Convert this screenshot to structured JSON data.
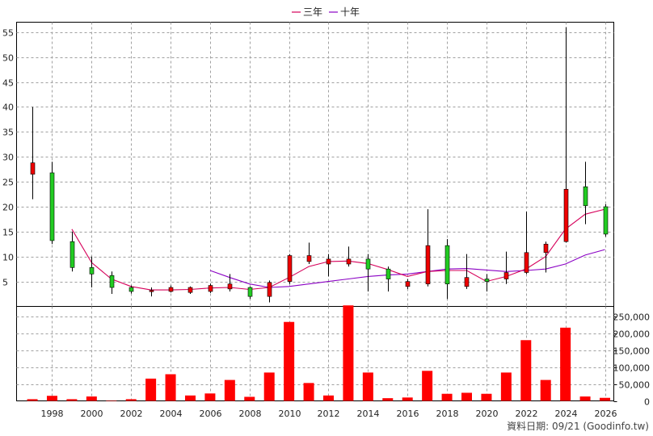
{
  "chart_data": {
    "type": "candlestick-with-volume",
    "legend": {
      "placement": "top-center",
      "items": [
        {
          "label": "三年",
          "color": "#d6005a"
        },
        {
          "label": "十年",
          "color": "#8a00c4"
        }
      ]
    },
    "price_axis": {
      "ticks": [
        "5",
        "10",
        "15",
        "20",
        "25",
        "30",
        "35",
        "40",
        "45",
        "50",
        "55"
      ],
      "range": [
        0,
        57
      ]
    },
    "volume_axis": {
      "ticks": [
        "0",
        "50,000",
        "100,000",
        "150,000",
        "200,000",
        "250,000"
      ],
      "range": [
        0,
        280000
      ]
    },
    "x_axis": {
      "tick_labels": [
        "1998",
        "2000",
        "2002",
        "2004",
        "2006",
        "2008",
        "2010",
        "2012",
        "2014",
        "2016",
        "2018",
        "2020",
        "2022",
        "2024",
        "2026"
      ]
    },
    "grid": true,
    "colors": {
      "up": "#ee0000",
      "down": "#22cc22",
      "volume": "#ff0000",
      "grid": "#a0a0a0",
      "ma3": "#d6005a",
      "ma10": "#8a00c4"
    },
    "candles": [
      {
        "year": 1997,
        "open": 26.5,
        "high": 40.0,
        "low": 21.5,
        "close": 28.8
      },
      {
        "year": 1998,
        "open": 26.8,
        "high": 29.0,
        "low": 12.5,
        "close": 13.2
      },
      {
        "year": 1999,
        "open": 13.0,
        "high": 15.0,
        "low": 7.0,
        "close": 7.8
      },
      {
        "year": 2000,
        "open": 7.8,
        "high": 10.0,
        "low": 3.8,
        "close": 6.5
      },
      {
        "year": 2001,
        "open": 6.2,
        "high": 7.0,
        "low": 2.5,
        "close": 3.8
      },
      {
        "year": 2002,
        "open": 3.8,
        "high": 4.2,
        "low": 2.6,
        "close": 3.0
      },
      {
        "year": 2003,
        "open": 3.0,
        "high": 3.8,
        "low": 2.0,
        "close": 3.2
      },
      {
        "year": 2004,
        "open": 3.0,
        "high": 4.2,
        "low": 2.8,
        "close": 3.8
      },
      {
        "year": 2005,
        "open": 2.8,
        "high": 4.0,
        "low": 2.5,
        "close": 3.8
      },
      {
        "year": 2006,
        "open": 3.0,
        "high": 4.6,
        "low": 2.7,
        "close": 4.2
      },
      {
        "year": 2007,
        "open": 3.5,
        "high": 6.5,
        "low": 3.0,
        "close": 4.5
      },
      {
        "year": 2008,
        "open": 3.8,
        "high": 4.0,
        "low": 1.5,
        "close": 2.0
      },
      {
        "year": 2009,
        "open": 2.0,
        "high": 5.2,
        "low": 0.8,
        "close": 4.8
      },
      {
        "year": 2010,
        "open": 5.0,
        "high": 10.5,
        "low": 4.5,
        "close": 10.2
      },
      {
        "year": 2011,
        "open": 9.0,
        "high": 12.8,
        "low": 8.5,
        "close": 10.2
      },
      {
        "year": 2012,
        "open": 8.5,
        "high": 10.5,
        "low": 6.0,
        "close": 9.5
      },
      {
        "year": 2013,
        "open": 8.5,
        "high": 12.0,
        "low": 8.0,
        "close": 9.5
      },
      {
        "year": 2014,
        "open": 9.5,
        "high": 10.5,
        "low": 3.0,
        "close": 7.5
      },
      {
        "year": 2015,
        "open": 7.5,
        "high": 8.0,
        "low": 3.0,
        "close": 5.5
      },
      {
        "year": 2016,
        "open": 4.0,
        "high": 5.5,
        "low": 3.5,
        "close": 5.0
      },
      {
        "year": 2017,
        "open": 4.5,
        "high": 19.5,
        "low": 4.0,
        "close": 12.2
      },
      {
        "year": 2018,
        "open": 12.2,
        "high": 13.5,
        "low": 1.5,
        "close": 4.5
      },
      {
        "year": 2019,
        "open": 4.0,
        "high": 10.5,
        "low": 3.5,
        "close": 5.8
      },
      {
        "year": 2020,
        "open": 5.5,
        "high": 6.5,
        "low": 3.0,
        "close": 5.0
      },
      {
        "year": 2021,
        "open": 5.5,
        "high": 11.0,
        "low": 4.5,
        "close": 6.8
      },
      {
        "year": 2022,
        "open": 6.8,
        "high": 19.0,
        "low": 6.5,
        "close": 10.8
      },
      {
        "year": 2023,
        "open": 10.8,
        "high": 13.0,
        "low": 6.8,
        "close": 12.5
      },
      {
        "year": 2024,
        "open": 13.0,
        "high": 56.0,
        "low": 12.8,
        "close": 23.5
      },
      {
        "year": 2025,
        "open": 24.0,
        "high": 29.0,
        "low": 16.5,
        "close": 20.2
      },
      {
        "year": 2026,
        "open": 20.0,
        "high": 20.5,
        "low": 14.0,
        "close": 14.5
      }
    ],
    "ma3_line": [
      {
        "year": 1999,
        "value": 15.5
      },
      {
        "year": 2000,
        "value": 8.8
      },
      {
        "year": 2001,
        "value": 5.5
      },
      {
        "year": 2002,
        "value": 4.0
      },
      {
        "year": 2003,
        "value": 3.3
      },
      {
        "year": 2004,
        "value": 3.3
      },
      {
        "year": 2005,
        "value": 3.4
      },
      {
        "year": 2006,
        "value": 3.7
      },
      {
        "year": 2007,
        "value": 3.8
      },
      {
        "year": 2008,
        "value": 3.4
      },
      {
        "year": 2009,
        "value": 3.8
      },
      {
        "year": 2010,
        "value": 5.8
      },
      {
        "year": 2011,
        "value": 8.0
      },
      {
        "year": 2012,
        "value": 9.0
      },
      {
        "year": 2013,
        "value": 9.1
      },
      {
        "year": 2014,
        "value": 8.6
      },
      {
        "year": 2015,
        "value": 7.4
      },
      {
        "year": 2016,
        "value": 6.0
      },
      {
        "year": 2017,
        "value": 7.0
      },
      {
        "year": 2018,
        "value": 7.2
      },
      {
        "year": 2019,
        "value": 7.2
      },
      {
        "year": 2020,
        "value": 5.0
      },
      {
        "year": 2021,
        "value": 6.0
      },
      {
        "year": 2022,
        "value": 7.5
      },
      {
        "year": 2023,
        "value": 10.0
      },
      {
        "year": 2024,
        "value": 15.5
      },
      {
        "year": 2025,
        "value": 18.5
      },
      {
        "year": 2026,
        "value": 19.5
      }
    ],
    "ma10_line": [
      {
        "year": 2006,
        "value": 7.2
      },
      {
        "year": 2007,
        "value": 5.8
      },
      {
        "year": 2008,
        "value": 4.5
      },
      {
        "year": 2009,
        "value": 3.8
      },
      {
        "year": 2010,
        "value": 4.0
      },
      {
        "year": 2011,
        "value": 4.5
      },
      {
        "year": 2012,
        "value": 5.0
      },
      {
        "year": 2013,
        "value": 5.5
      },
      {
        "year": 2014,
        "value": 6.0
      },
      {
        "year": 2015,
        "value": 6.3
      },
      {
        "year": 2016,
        "value": 6.5
      },
      {
        "year": 2017,
        "value": 7.0
      },
      {
        "year": 2018,
        "value": 7.5
      },
      {
        "year": 2019,
        "value": 7.6
      },
      {
        "year": 2020,
        "value": 7.3
      },
      {
        "year": 2021,
        "value": 7.0
      },
      {
        "year": 2022,
        "value": 7.2
      },
      {
        "year": 2023,
        "value": 7.5
      },
      {
        "year": 2024,
        "value": 8.5
      },
      {
        "year": 2025,
        "value": 10.3
      },
      {
        "year": 2026,
        "value": 11.4
      }
    ],
    "volume": [
      {
        "year": 1997,
        "value": 5000
      },
      {
        "year": 1998,
        "value": 15000
      },
      {
        "year": 1999,
        "value": 5000
      },
      {
        "year": 2000,
        "value": 13000
      },
      {
        "year": 2001,
        "value": 1000
      },
      {
        "year": 2002,
        "value": 5000
      },
      {
        "year": 2003,
        "value": 66000
      },
      {
        "year": 2004,
        "value": 79000
      },
      {
        "year": 2005,
        "value": 16000
      },
      {
        "year": 2006,
        "value": 22000
      },
      {
        "year": 2007,
        "value": 62000
      },
      {
        "year": 2008,
        "value": 12000
      },
      {
        "year": 2009,
        "value": 84000
      },
      {
        "year": 2010,
        "value": 234000
      },
      {
        "year": 2011,
        "value": 53000
      },
      {
        "year": 2012,
        "value": 16000
      },
      {
        "year": 2013,
        "value": 283000
      },
      {
        "year": 2014,
        "value": 84000
      },
      {
        "year": 2015,
        "value": 8000
      },
      {
        "year": 2016,
        "value": 10000
      },
      {
        "year": 2017,
        "value": 89000
      },
      {
        "year": 2018,
        "value": 21000
      },
      {
        "year": 2019,
        "value": 24000
      },
      {
        "year": 2020,
        "value": 21000
      },
      {
        "year": 2021,
        "value": 84000
      },
      {
        "year": 2022,
        "value": 180000
      },
      {
        "year": 2023,
        "value": 62000
      },
      {
        "year": 2024,
        "value": 217000
      },
      {
        "year": 2025,
        "value": 13000
      },
      {
        "year": 2026,
        "value": 9000
      }
    ],
    "x_range": [
      1996.2,
      2026.45
    ]
  },
  "footer": {
    "text": "資料日期: 09/21 (Goodinfo.tw)"
  }
}
